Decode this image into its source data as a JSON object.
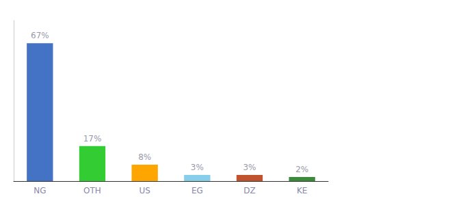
{
  "chart_data": {
    "type": "bar",
    "categories": [
      "NG",
      "OTH",
      "US",
      "EG",
      "DZ",
      "KE"
    ],
    "values": [
      67,
      17,
      8,
      3,
      3,
      2
    ],
    "value_labels": [
      "67%",
      "17%",
      "8%",
      "3%",
      "3%",
      "2%"
    ],
    "data_labels": true,
    "colors": [
      "#4472C4",
      "#33CC33",
      "#FFA500",
      "#87CEEB",
      "#C0522D",
      "#3A8C3A"
    ],
    "ylim": [
      0,
      78
    ],
    "tick_labels": "x",
    "grid": false
  }
}
